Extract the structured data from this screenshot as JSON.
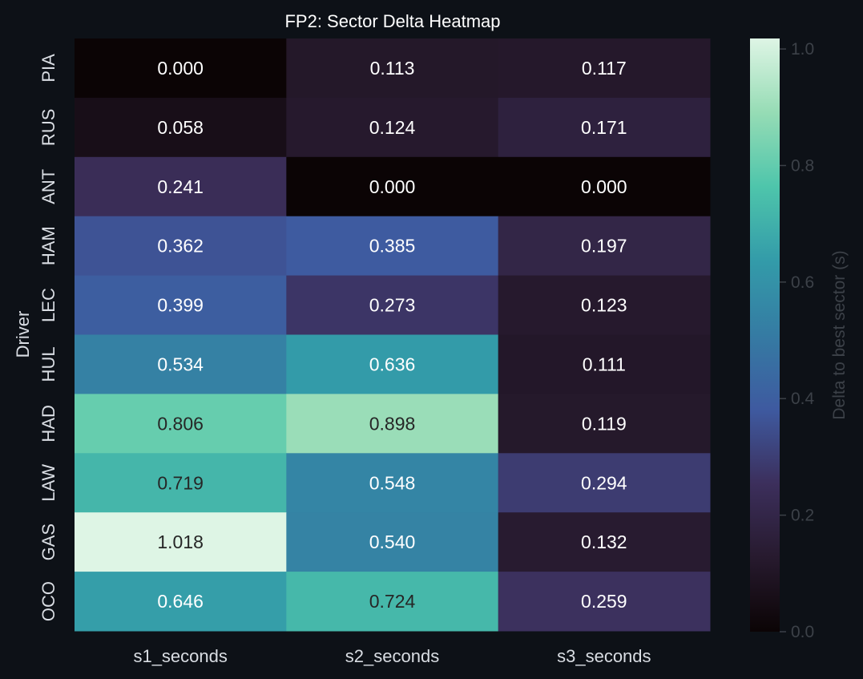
{
  "chart_data": {
    "type": "heatmap",
    "title": "FP2: Sector Delta Heatmap",
    "xlabel": "",
    "ylabel": "Driver",
    "x_categories": [
      "s1_seconds",
      "s2_seconds",
      "s3_seconds"
    ],
    "y_categories": [
      "PIA",
      "RUS",
      "ANT",
      "HAM",
      "LEC",
      "HUL",
      "HAD",
      "LAW",
      "GAS",
      "OCO"
    ],
    "values": [
      [
        0.0,
        0.113,
        0.117
      ],
      [
        0.058,
        0.124,
        0.171
      ],
      [
        0.241,
        0.0,
        0.0
      ],
      [
        0.362,
        0.385,
        0.197
      ],
      [
        0.399,
        0.273,
        0.123
      ],
      [
        0.534,
        0.636,
        0.111
      ],
      [
        0.806,
        0.898,
        0.119
      ],
      [
        0.719,
        0.548,
        0.294
      ],
      [
        1.018,
        0.54,
        0.132
      ],
      [
        0.646,
        0.724,
        0.259
      ]
    ],
    "value_format": "0.000",
    "colorbar": {
      "label": "Delta to best sector (s)",
      "range": [
        0.0,
        1.018
      ],
      "ticks": [
        0.0,
        0.2,
        0.4,
        0.6,
        0.8,
        1.0
      ],
      "tick_labels": [
        "0.0",
        "0.2",
        "0.4",
        "0.6",
        "0.8",
        "1.0"
      ],
      "colormap": "mako"
    },
    "colors": {
      "background": "#0d1117",
      "scale": [
        "#0b0405",
        "#271a2e",
        "#3c2f5c",
        "#3e5aa0",
        "#357ba3",
        "#339ba9",
        "#4ec5ab",
        "#96dcb5",
        "#def5e5"
      ],
      "text_light": "#ffffff",
      "text_dark": "#262626"
    }
  }
}
